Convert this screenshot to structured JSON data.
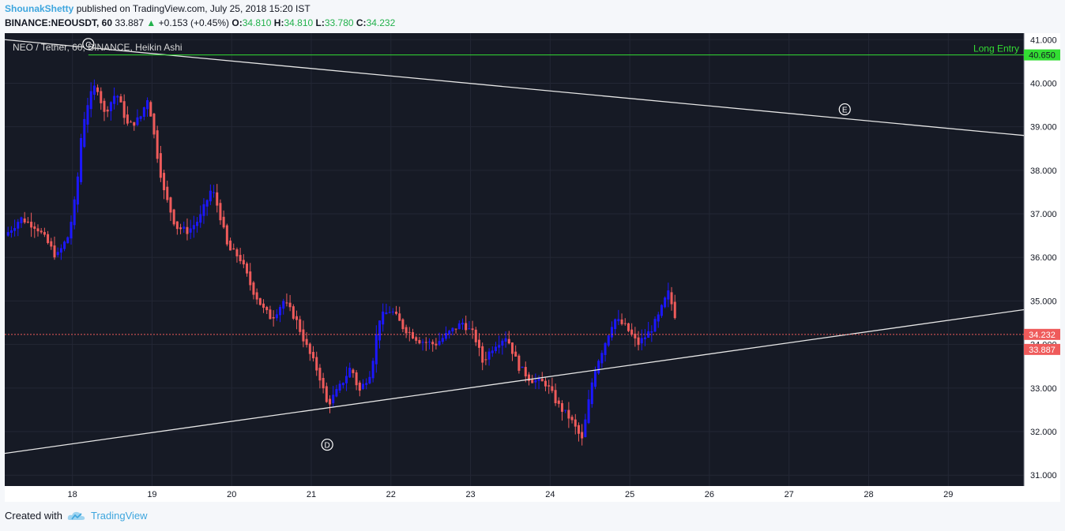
{
  "header": {
    "author": "ShounakShetty",
    "published_text": "published on TradingView.com, July 25, 2018 15:20 IST",
    "symbol": "BINANCE:NEOUSDT, 60",
    "last_price": "33.887",
    "change_arrow": "▲",
    "change": "+0.153 (+0.45%)",
    "o_label": "O:",
    "o": "34.810",
    "h_label": "H:",
    "h": "34.810",
    "l_label": "L:",
    "l": "33.780",
    "c_label": "C:",
    "c": "34.232"
  },
  "footer": {
    "created_with": "Created with",
    "brand": "TradingView"
  },
  "colors": {
    "panel_bg": "#161a25",
    "grid": "#232735",
    "bull": "#1c17ff",
    "bear": "#ef5b5b",
    "trend_line": "#e6e6e6",
    "entry_line": "#33dd33",
    "price_tag": "#ef5b5b"
  },
  "chart_data": {
    "type": "candlestick",
    "title": "NEO / Tether, 60, BINANCE, Heikin Ashi",
    "x_ticks": [
      "18",
      "19",
      "20",
      "21",
      "22",
      "23",
      "24",
      "25",
      "26",
      "27",
      "28",
      "29"
    ],
    "y_ticks": [
      "31.000",
      "32.000",
      "33.000",
      "34.000",
      "35.000",
      "36.000",
      "37.000",
      "38.000",
      "39.000",
      "40.000",
      "41.000"
    ],
    "ylim": [
      30.75,
      41.15
    ],
    "xlim": [
      17.15,
      29.95
    ],
    "price_tags": [
      {
        "value": 34.232,
        "label": "34.232"
      },
      {
        "value": 33.887,
        "label": "33.887"
      }
    ],
    "horizontal_line": {
      "value": 40.65,
      "label": "Long Entry",
      "tag": "40.650"
    },
    "trend_lines": [
      {
        "x1": 17.15,
        "y1": 41.0,
        "x2": 29.95,
        "y2": 38.8
      },
      {
        "x1": 17.15,
        "y1": 31.5,
        "x2": 29.95,
        "y2": 34.8
      }
    ],
    "annotations": [
      {
        "text": "C",
        "x": 18.2,
        "y": 40.9
      },
      {
        "text": "D",
        "x": 21.2,
        "y": 31.7
      },
      {
        "text": "E",
        "x": 27.7,
        "y": 39.4
      }
    ],
    "path": [
      [
        17.15,
        36.5
      ],
      [
        17.35,
        36.9
      ],
      [
        17.55,
        36.7
      ],
      [
        17.7,
        36.3
      ],
      [
        17.8,
        36.0
      ],
      [
        17.95,
        36.5
      ],
      [
        18.05,
        37.5
      ],
      [
        18.12,
        39.0
      ],
      [
        18.2,
        39.6
      ],
      [
        18.3,
        40.0
      ],
      [
        18.4,
        39.3
      ],
      [
        18.55,
        39.8
      ],
      [
        18.7,
        39.0
      ],
      [
        18.85,
        39.2
      ],
      [
        18.95,
        39.7
      ],
      [
        19.05,
        38.5
      ],
      [
        19.15,
        37.5
      ],
      [
        19.3,
        36.7
      ],
      [
        19.45,
        36.6
      ],
      [
        19.6,
        36.9
      ],
      [
        19.75,
        37.6
      ],
      [
        19.85,
        37.0
      ],
      [
        19.95,
        36.2
      ],
      [
        20.1,
        36.0
      ],
      [
        20.25,
        35.3
      ],
      [
        20.4,
        34.8
      ],
      [
        20.5,
        34.6
      ],
      [
        20.65,
        35.0
      ],
      [
        20.8,
        34.6
      ],
      [
        20.95,
        33.9
      ],
      [
        21.1,
        33.3
      ],
      [
        21.2,
        32.6
      ],
      [
        21.35,
        33.0
      ],
      [
        21.5,
        33.5
      ],
      [
        21.6,
        32.9
      ],
      [
        21.75,
        33.4
      ],
      [
        21.85,
        34.6
      ],
      [
        22.0,
        34.8
      ],
      [
        22.15,
        34.4
      ],
      [
        22.35,
        34.1
      ],
      [
        22.55,
        34.0
      ],
      [
        22.75,
        34.3
      ],
      [
        22.9,
        34.5
      ],
      [
        23.05,
        34.2
      ],
      [
        23.15,
        33.6
      ],
      [
        23.3,
        34.0
      ],
      [
        23.45,
        34.2
      ],
      [
        23.6,
        33.5
      ],
      [
        23.75,
        33.2
      ],
      [
        23.95,
        33.1
      ],
      [
        24.1,
        32.6
      ],
      [
        24.25,
        32.3
      ],
      [
        24.4,
        31.8
      ],
      [
        24.55,
        33.4
      ],
      [
        24.7,
        34.1
      ],
      [
        24.8,
        34.6
      ],
      [
        24.95,
        34.4
      ],
      [
        25.1,
        34.0
      ],
      [
        25.25,
        34.3
      ],
      [
        25.35,
        34.6
      ],
      [
        25.48,
        35.2
      ],
      [
        25.58,
        34.6
      ]
    ]
  }
}
